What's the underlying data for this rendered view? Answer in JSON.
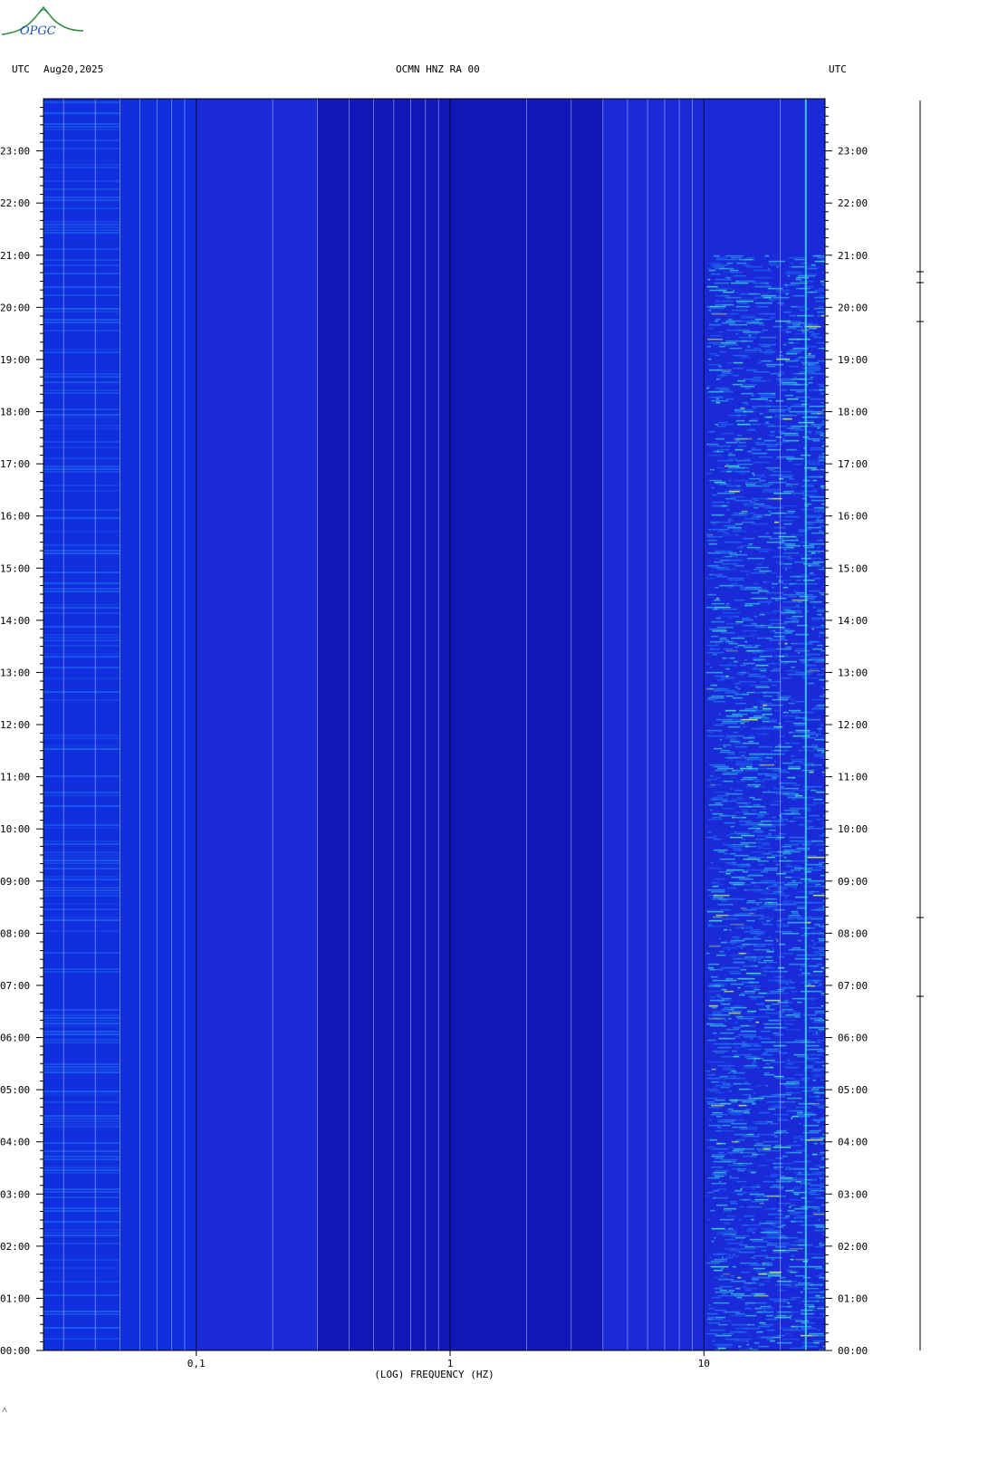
{
  "logo": {
    "text": "OPGC",
    "icon": "volcano-logo-icon"
  },
  "header": {
    "left_tz": "UTC",
    "date": "Aug20,2025",
    "station": "OCMN HNZ RA 00",
    "right_tz": "UTC"
  },
  "chart_data": {
    "type": "heatmap",
    "title": "OCMN HNZ RA 00",
    "xlabel": "(LOG) FREQUENCY (HZ)",
    "ylabel": "UTC",
    "x_scale": "log",
    "xlim": [
      0.025,
      30
    ],
    "x_ticks": [
      {
        "value": 0.1,
        "label": "0,1"
      },
      {
        "value": 1,
        "label": "1"
      },
      {
        "value": 10,
        "label": "10"
      }
    ],
    "ylim_hours": [
      0,
      24
    ],
    "y_ticks": [
      "00:00",
      "01:00",
      "02:00",
      "03:00",
      "04:00",
      "05:00",
      "06:00",
      "07:00",
      "08:00",
      "09:00",
      "10:00",
      "11:00",
      "12:00",
      "13:00",
      "14:00",
      "15:00",
      "16:00",
      "17:00",
      "18:00",
      "19:00",
      "20:00",
      "21:00",
      "22:00",
      "23:00"
    ],
    "colormap": [
      "#0a0aa0",
      "#1030e0",
      "#1f6af0",
      "#2fb0f0",
      "#40e0e0",
      "#c8f060",
      "#f0f000",
      "#f08000"
    ],
    "background_color": "#1a2ad8",
    "high_energy_band_hz": [
      12,
      30
    ],
    "high_energy_hours": [
      0,
      21
    ]
  },
  "footer_mark": "˄"
}
